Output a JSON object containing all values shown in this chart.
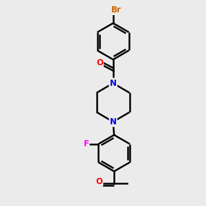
{
  "background_color": "#ebebeb",
  "bond_color": "#000000",
  "atom_colors": {
    "O": "#ff0000",
    "N": "#0000ee",
    "F": "#ff00ff",
    "Br": "#cc6600",
    "C": "#000000"
  },
  "bond_width": 1.8,
  "figsize": [
    3.0,
    3.0
  ],
  "dpi": 100
}
